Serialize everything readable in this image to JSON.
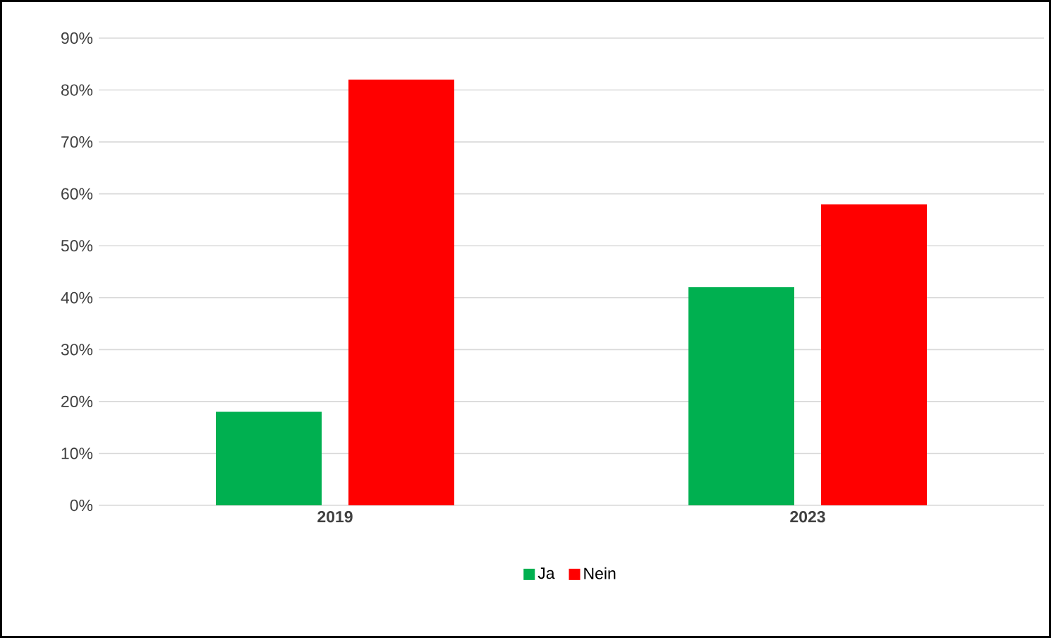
{
  "chart_data": {
    "type": "bar",
    "categories": [
      "2019",
      "2023"
    ],
    "series": [
      {
        "name": "Ja",
        "color": "#00b050",
        "values": [
          18,
          42
        ]
      },
      {
        "name": "Nein",
        "color": "#ff0000",
        "values": [
          82,
          58
        ]
      }
    ],
    "ylim": [
      0,
      90
    ],
    "yticks": [
      {
        "value": 0,
        "label": "0%"
      },
      {
        "value": 10,
        "label": "10%"
      },
      {
        "value": 20,
        "label": "20%"
      },
      {
        "value": 30,
        "label": "30%"
      },
      {
        "value": 40,
        "label": "40%"
      },
      {
        "value": 50,
        "label": "50%"
      },
      {
        "value": 60,
        "label": "60%"
      },
      {
        "value": 70,
        "label": "70%"
      },
      {
        "value": 80,
        "label": "80%"
      },
      {
        "value": 90,
        "label": "90%"
      }
    ],
    "grid": "y",
    "legend": "bottom"
  }
}
